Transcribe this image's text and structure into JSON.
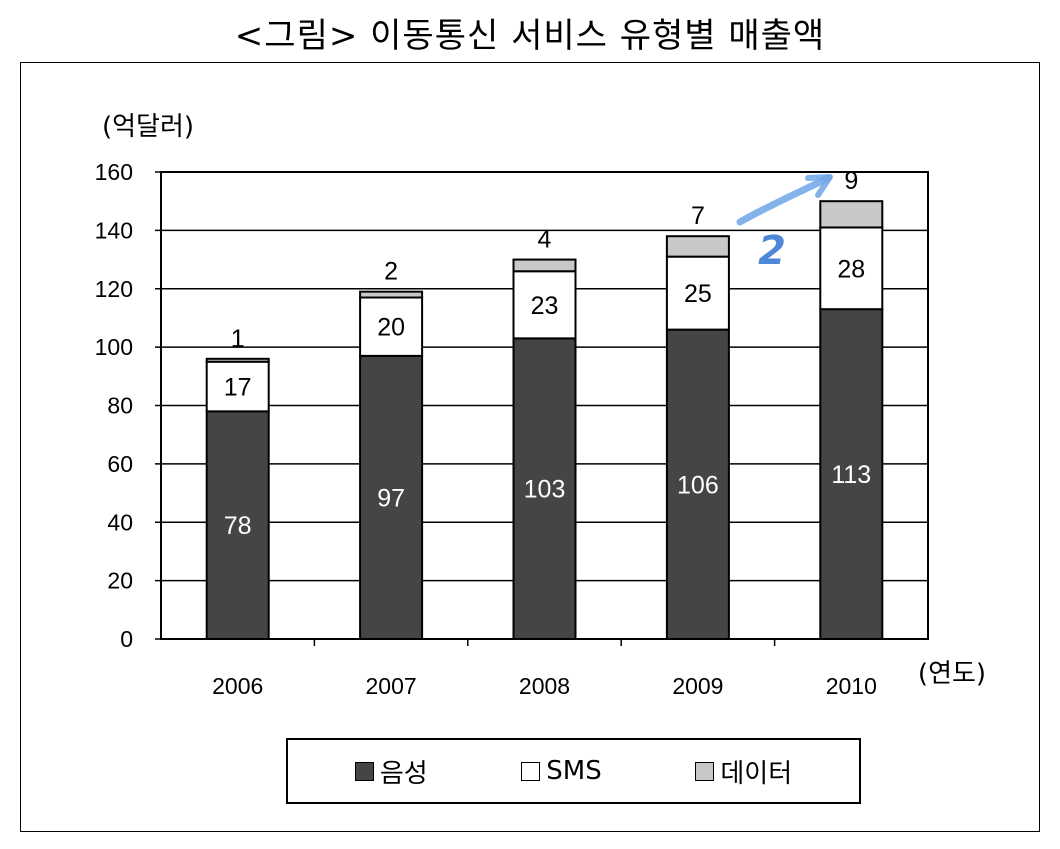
{
  "title": "<그림> 이동통신 서비스 유형별 매출액",
  "chart_data": {
    "type": "bar",
    "stacked": true,
    "categories": [
      "2006",
      "2007",
      "2008",
      "2009",
      "2010"
    ],
    "series": [
      {
        "name": "음성",
        "values": [
          78,
          97,
          103,
          106,
          113
        ],
        "color": "#454545"
      },
      {
        "name": "SMS",
        "values": [
          17,
          20,
          23,
          25,
          28
        ],
        "color": "#ffffff"
      },
      {
        "name": "데이터",
        "values": [
          1,
          2,
          4,
          7,
          9
        ],
        "color": "#c8c8c8"
      }
    ],
    "ylabel": "(억달러)",
    "xlabel": "(연도)",
    "ylim": [
      0,
      160
    ],
    "yticks": [
      0,
      20,
      40,
      60,
      80,
      100,
      120,
      140,
      160
    ],
    "grid": true,
    "legend_position": "bottom",
    "annotation": "2"
  }
}
